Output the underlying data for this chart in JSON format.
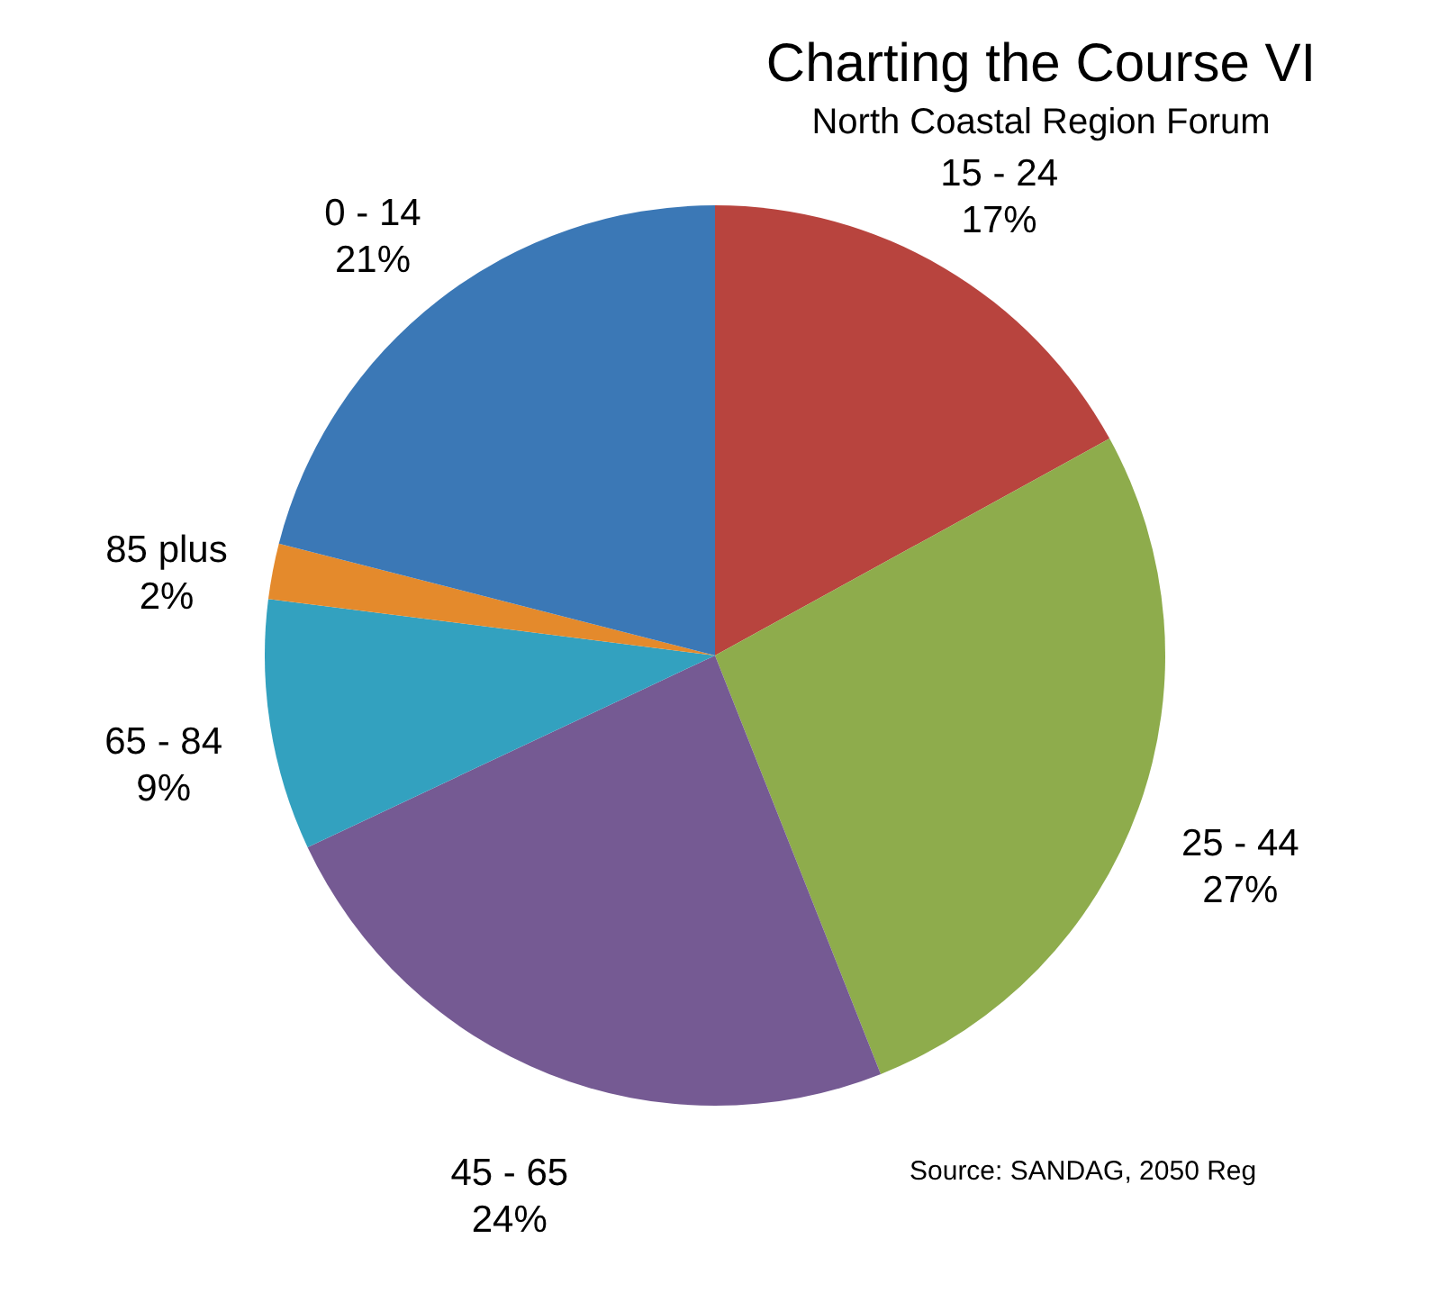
{
  "chart_data": {
    "type": "pie",
    "title": "Charting the Course VI",
    "subtitle": "North Coastal Region Forum",
    "categories": [
      "15 - 24",
      "25 - 44",
      "45 - 65",
      "65 - 84",
      "85 plus",
      "0 - 14"
    ],
    "values": [
      17,
      27,
      24,
      9,
      2,
      21
    ],
    "value_labels": [
      "17%",
      "27%",
      "24%",
      "9%",
      "2%",
      "21%"
    ],
    "colors": [
      "#b8443e",
      "#8eac4c",
      "#755a93",
      "#33a1bf",
      "#e48a2c",
      "#3b78b6"
    ],
    "annotations": [
      "Source: SANDAG, 2050 Reg"
    ]
  }
}
